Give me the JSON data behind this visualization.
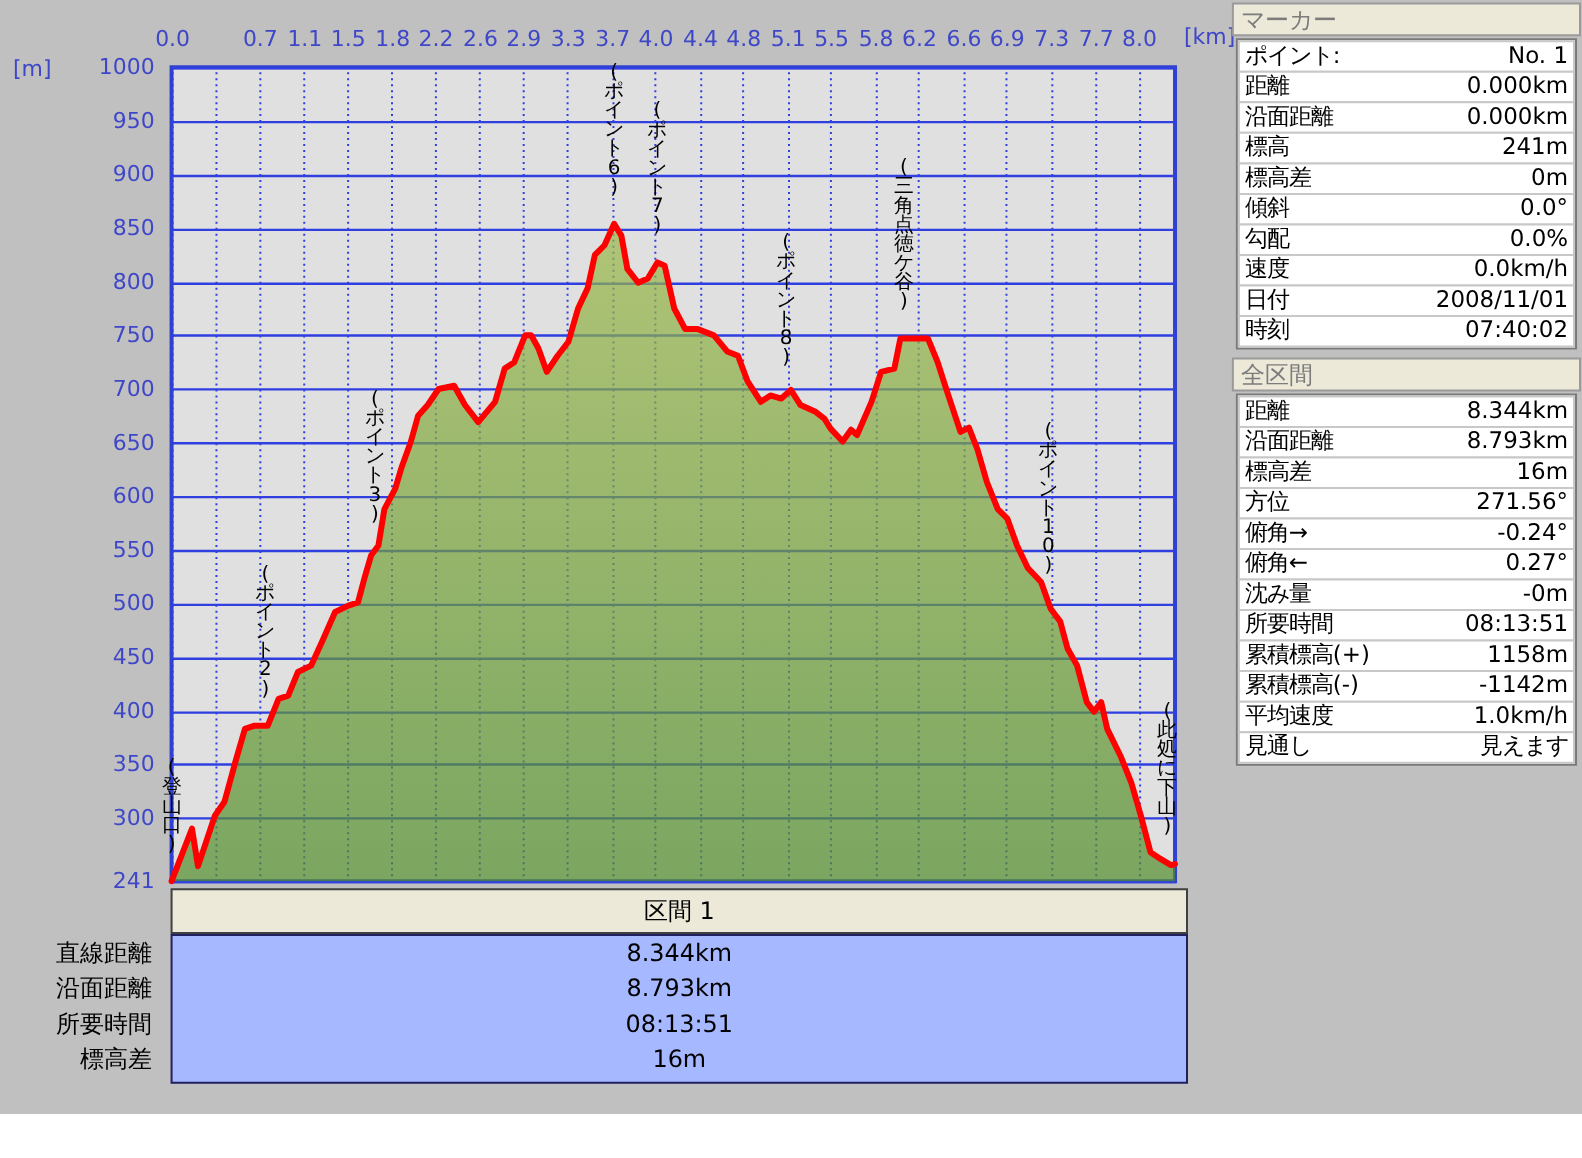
{
  "chart_data": [
    {
      "type": "area",
      "xlabel": "[km]",
      "ylabel": "[m]",
      "xlim": [
        0,
        8.344
      ],
      "ylim": [
        241,
        1000
      ],
      "xticks": [
        {
          "value": 0,
          "label": "0.0"
        },
        {
          "value": 0.37,
          "label": null
        },
        {
          "value": 0.73,
          "label": "0.7"
        },
        {
          "value": 1.1,
          "label": "1.1"
        },
        {
          "value": 1.46,
          "label": "1.5"
        },
        {
          "value": 1.83,
          "label": "1.8"
        },
        {
          "value": 2.19,
          "label": "2.2"
        },
        {
          "value": 2.56,
          "label": "2.6"
        },
        {
          "value": 2.92,
          "label": "2.9"
        },
        {
          "value": 3.29,
          "label": "3.3"
        },
        {
          "value": 3.66,
          "label": "3.7"
        },
        {
          "value": 4.02,
          "label": "4.0"
        },
        {
          "value": 4.39,
          "label": "4.4"
        },
        {
          "value": 4.75,
          "label": "4.8"
        },
        {
          "value": 5.12,
          "label": "5.1"
        },
        {
          "value": 5.48,
          "label": "5.5"
        },
        {
          "value": 5.85,
          "label": "5.8"
        },
        {
          "value": 6.21,
          "label": "6.2"
        },
        {
          "value": 6.58,
          "label": "6.6"
        },
        {
          "value": 6.94,
          "label": "6.9"
        },
        {
          "value": 7.31,
          "label": "7.3"
        },
        {
          "value": 7.68,
          "label": "7.7"
        },
        {
          "value": 8.04,
          "label": "8.0"
        }
      ],
      "yticks": [
        241,
        300,
        350,
        400,
        450,
        500,
        550,
        600,
        650,
        700,
        750,
        800,
        850,
        900,
        950,
        1000
      ],
      "grid": true,
      "x": [
        0,
        0.17,
        0.22,
        0.36,
        0.44,
        0.53,
        0.61,
        0.69,
        0.8,
        0.89,
        0.97,
        1.05,
        1.16,
        1.25,
        1.36,
        1.47,
        1.55,
        1.61,
        1.66,
        1.72,
        1.77,
        1.86,
        1.91,
        1.99,
        2.05,
        2.13,
        2.22,
        2.35,
        2.44,
        2.55,
        2.69,
        2.77,
        2.85,
        2.94,
        2.99,
        3.05,
        3.12,
        3.21,
        3.3,
        3.38,
        3.46,
        3.52,
        3.6,
        3.68,
        3.74,
        3.79,
        3.88,
        3.96,
        4.04,
        4.1,
        4.18,
        4.27,
        4.37,
        4.51,
        4.62,
        4.71,
        4.79,
        4.9,
        4.98,
        5.07,
        5.15,
        5.23,
        5.35,
        5.43,
        5.48,
        5.58,
        5.65,
        5.7,
        5.82,
        5.9,
        6.01,
        6.06,
        6.29,
        6.37,
        6.45,
        6.56,
        6.63,
        6.7,
        6.78,
        6.87,
        6.95,
        7.03,
        7.12,
        7.23,
        7.31,
        7.39,
        7.45,
        7.53,
        7.61,
        7.67,
        7.73,
        7.78,
        7.89,
        7.98,
        8.06,
        8.14,
        8.22,
        8.31,
        8.344
      ],
      "series": [
        {
          "type": "area",
          "color": "#73a03c",
          "values": [
            241,
            290,
            255,
            302,
            315,
            352,
            383,
            386,
            386,
            411,
            414,
            436,
            442,
            464,
            492,
            498,
            501,
            526,
            545,
            554,
            588,
            607,
            626,
            651,
            675,
            685,
            700,
            703,
            685,
            669,
            688,
            719,
            725,
            750,
            750,
            738,
            716,
            731,
            744,
            775,
            794,
            825,
            834,
            854,
            843,
            812,
            799,
            803,
            818,
            815,
            775,
            756,
            756,
            750,
            735,
            731,
            707,
            688,
            694,
            691,
            699,
            685,
            679,
            672,
            663,
            651,
            662,
            657,
            688,
            716,
            719,
            747,
            747,
            725,
            697,
            660,
            664,
            644,
            613,
            588,
            579,
            554,
            533,
            520,
            495,
            483,
            458,
            442,
            408,
            399,
            408,
            383,
            358,
            333,
            302,
            268,
            262,
            256,
            257
          ]
        }
      ],
      "annotations": [
        {
          "text": "(登山口)",
          "x": 0,
          "y": 241
        },
        {
          "text": "(ポイント2)",
          "x": 0.78,
          "y": 386
        },
        {
          "text": "(ポイント3)",
          "x": 1.69,
          "y": 549
        },
        {
          "text": "(ポイント6)",
          "x": 3.68,
          "y": 854
        },
        {
          "text": "(ポイント7)",
          "x": 4.04,
          "y": 818
        },
        {
          "text": "(ポイント8)",
          "x": 5.11,
          "y": 695
        },
        {
          "text": "(三角点徳ケ谷)",
          "x": 6.09,
          "y": 747
        },
        {
          "text": "(ポイント10)",
          "x": 7.29,
          "y": 501
        },
        {
          "text": "(此処に下山)",
          "x": 8.28,
          "y": 258
        }
      ]
    },
    {
      "type": "other",
      "title": "区間 1",
      "annotations": [
        "直線距離",
        "8.344km",
        "沿面距離",
        "8.793km",
        "所要時間",
        "08:13:51",
        "標高差",
        "16m"
      ]
    },
    {
      "type": "other",
      "title": "マーカー",
      "annotations": [
        "ポイント:",
        "No. 1",
        "距離",
        "0.000km",
        "沿面距離",
        "0.000km",
        "標高",
        "241m",
        "標高差",
        "0m",
        "傾斜",
        "0.0°",
        "勾配",
        "0.0%",
        "速度",
        "0.0km/h",
        "日付",
        "2008/11/01",
        "時刻",
        "07:40:02"
      ]
    },
    {
      "type": "other",
      "title": "全区間",
      "annotations": [
        "距離",
        "8.344km",
        "沿面距離",
        "8.793km",
        "標高差",
        "16m",
        "方位",
        "271.56°",
        "俯角→",
        "-0.24°",
        "俯角←",
        "0.27°",
        "沈み量",
        "-0m",
        "所要時間",
        "08:13:51",
        "累積標高(+)",
        "1158m",
        "累積標高(-)",
        "-1142m",
        "平均速度",
        "1.0km/h",
        "見通し",
        "見えます"
      ]
    }
  ]
}
